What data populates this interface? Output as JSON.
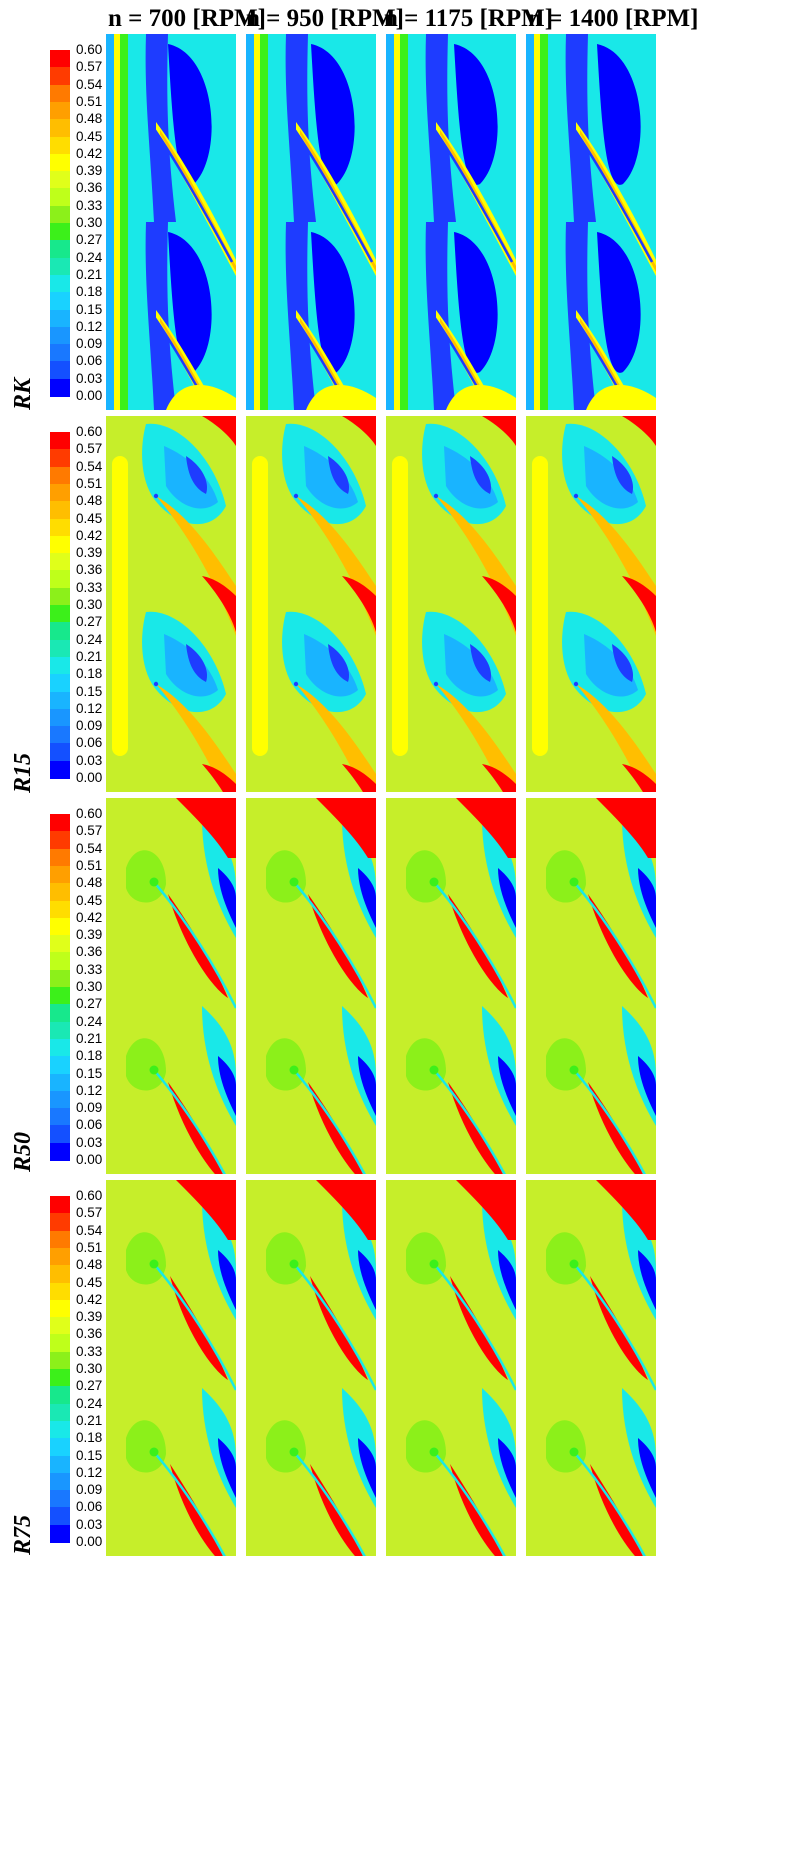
{
  "columns": [
    {
      "speed_label": "n = 700 [RPM]",
      "n": 700
    },
    {
      "speed_label": "n = 950 [RPM]",
      "n": 950
    },
    {
      "speed_label": "n = 1175 [RPM]",
      "n": 1175
    },
    {
      "speed_label": "n = 1400 [RPM]",
      "n": 1400
    }
  ],
  "rows": [
    {
      "label": "RK"
    },
    {
      "label": "R15"
    },
    {
      "label": "R50"
    },
    {
      "label": "R75"
    }
  ],
  "colorbar": {
    "ticks": [
      "0.60",
      "0.57",
      "0.54",
      "0.51",
      "0.48",
      "0.45",
      "0.42",
      "0.39",
      "0.36",
      "0.33",
      "0.30",
      "0.27",
      "0.24",
      "0.21",
      "0.18",
      "0.15",
      "0.12",
      "0.09",
      "0.06",
      "0.03",
      "0.00"
    ],
    "colors": [
      "#ff0000",
      "#ff3b00",
      "#ff7a00",
      "#ff9f00",
      "#ffbe00",
      "#ffdd00",
      "#ffff00",
      "#e0ff1a",
      "#bfff1a",
      "#8cf01a",
      "#3cf01a",
      "#17e88c",
      "#1ae8b4",
      "#19e8e8",
      "#19d2ff",
      "#19b4ff",
      "#1996ff",
      "#1978ff",
      "#1450ff",
      "#0000ff"
    ]
  },
  "palette": {
    "blue": "#0000ff",
    "deepblue": "#1e3cff",
    "lightblue": "#19b4ff",
    "cyan": "#19e8e8",
    "teal": "#17e8a0",
    "green": "#3cf01a",
    "lightgreen": "#8cf01a",
    "yellowgreen": "#c6ee2a",
    "yellow": "#ffff00",
    "orange": "#ffbe00",
    "darkorange": "#ff7a00",
    "red": "#ff0000"
  }
}
